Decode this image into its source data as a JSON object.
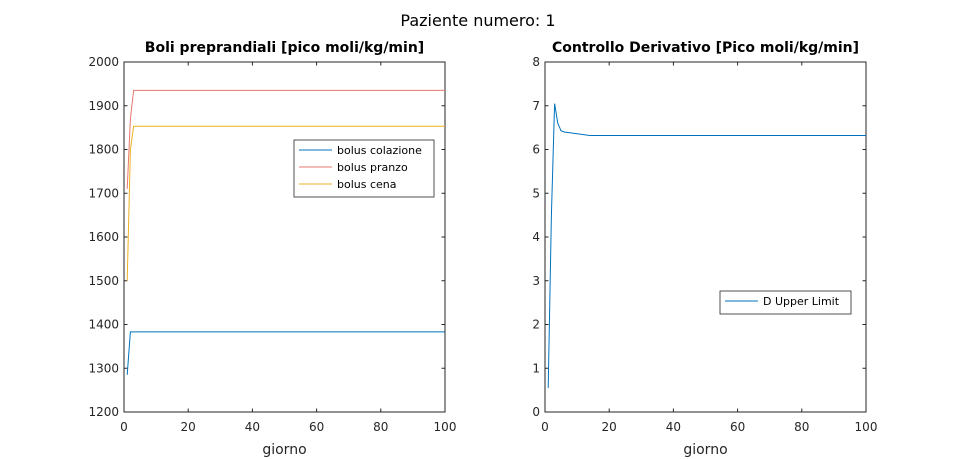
{
  "figure_title": "Paziente numero: 1",
  "colors": {
    "series1": "#0072BD",
    "series2": "#E8786E",
    "series3": "#EDB120",
    "axis": "#262626"
  },
  "chart_data": [
    {
      "type": "line",
      "title": "Boli preprandiali [pico moli/kg/min]",
      "xlabel": "giorno",
      "ylabel": "",
      "xlim": [
        0,
        100
      ],
      "ylim": [
        1200,
        2000
      ],
      "xticks": [
        0,
        20,
        40,
        60,
        80,
        100
      ],
      "yticks": [
        1200,
        1300,
        1400,
        1500,
        1600,
        1700,
        1800,
        1900,
        2000
      ],
      "legend_position": "right-upper",
      "series": [
        {
          "name": "bolus colazione",
          "color": "#0072BD",
          "x": [
            1,
            2,
            3,
            100
          ],
          "y": [
            1285,
            1383,
            1383,
            1383
          ]
        },
        {
          "name": "bolus pranzo",
          "color": "#E8786E",
          "x": [
            1,
            2,
            3,
            100
          ],
          "y": [
            1710,
            1870,
            1935,
            1935
          ]
        },
        {
          "name": "bolus cena",
          "color": "#EDB120",
          "x": [
            1,
            2,
            3,
            100
          ],
          "y": [
            1500,
            1800,
            1853,
            1853
          ]
        }
      ]
    },
    {
      "type": "line",
      "title": "Controllo Derivativo [Pico moli/kg/min]",
      "xlabel": "giorno",
      "ylabel": "",
      "xlim": [
        0,
        100
      ],
      "ylim": [
        0,
        8
      ],
      "xticks": [
        0,
        20,
        40,
        60,
        80,
        100
      ],
      "yticks": [
        0,
        1,
        2,
        3,
        4,
        5,
        6,
        7,
        8
      ],
      "legend_position": "right-middle",
      "series": [
        {
          "name": "D Upper Limit",
          "color": "#0072BD",
          "x": [
            1,
            2,
            3,
            4,
            5,
            6,
            8,
            10,
            12,
            14,
            100
          ],
          "y": [
            0.55,
            4.5,
            7.05,
            6.6,
            6.43,
            6.4,
            6.38,
            6.36,
            6.34,
            6.32,
            6.32
          ]
        }
      ]
    }
  ]
}
